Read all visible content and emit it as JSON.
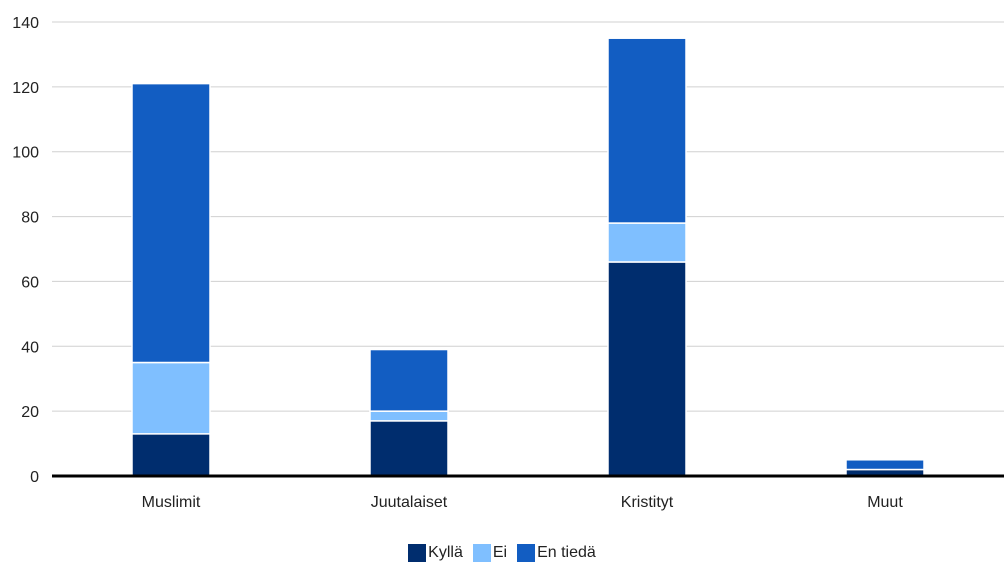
{
  "chart_data": {
    "type": "bar",
    "stacked": true,
    "categories": [
      "Muslimit",
      "Juutalaiset",
      "Kristityt",
      "Muut"
    ],
    "series": [
      {
        "name": "Kyllä",
        "color": "#002d6e",
        "values": [
          13,
          17,
          66,
          2
        ]
      },
      {
        "name": "Ei",
        "color": "#7fbfff",
        "values": [
          22,
          3,
          12,
          0
        ]
      },
      {
        "name": "En tiedä",
        "color": "#125dc2",
        "values": [
          86,
          19,
          57,
          3
        ]
      }
    ],
    "ylim": [
      0,
      140
    ],
    "yticks": [
      0,
      20,
      40,
      60,
      80,
      100,
      120,
      140
    ],
    "grid": true,
    "legend": "bottom-center"
  }
}
